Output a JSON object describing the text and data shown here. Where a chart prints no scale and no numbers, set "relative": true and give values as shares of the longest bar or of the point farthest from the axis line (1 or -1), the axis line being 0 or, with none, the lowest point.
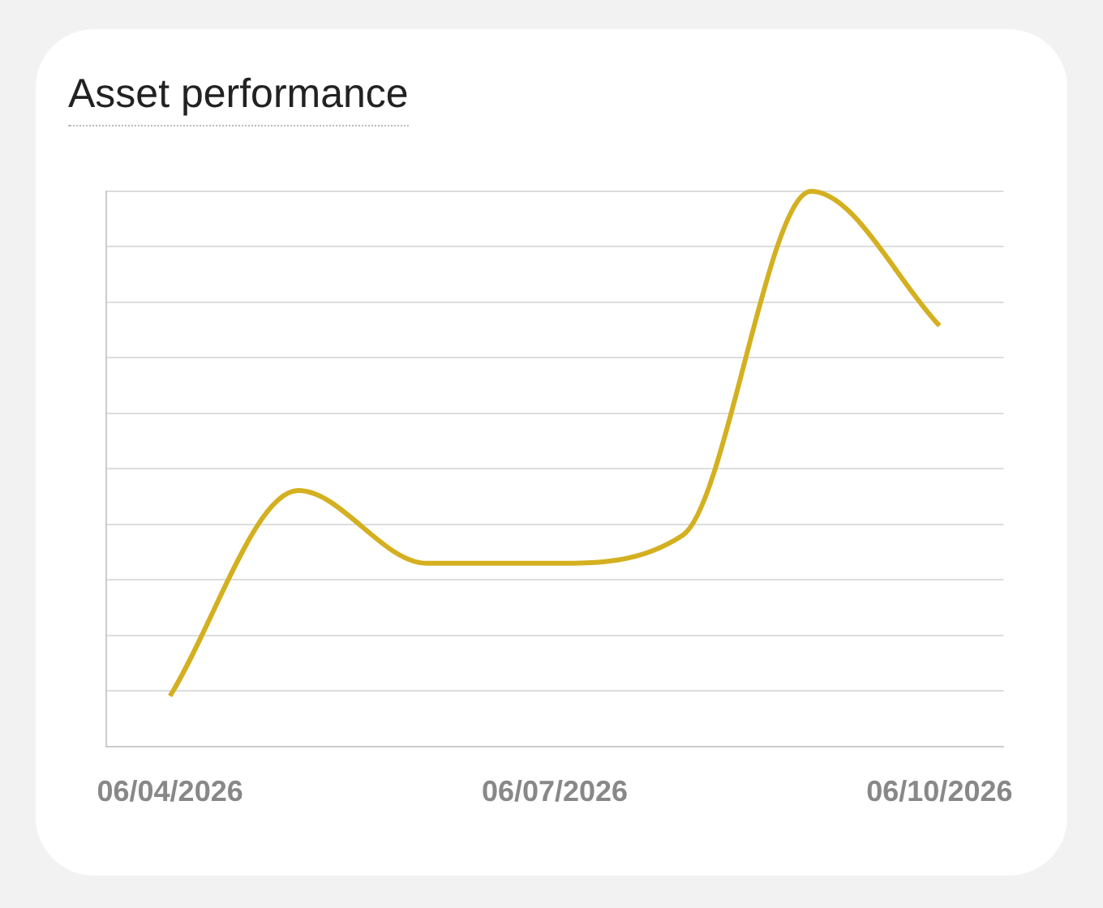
{
  "chart_data": {
    "type": "line",
    "title": "Asset performance",
    "relative": true,
    "categories": [
      "06/04/2026",
      null,
      null,
      "06/07/2026",
      null,
      null,
      "06/10/2026"
    ],
    "series": [
      {
        "color": "#d4b020",
        "values": [
          0.091,
          0.461,
          0.33,
          0.33,
          0.381,
          1,
          0.758
        ]
      }
    ],
    "grid": "y",
    "legend": false,
    "marker": "none",
    "line_style": "solid"
  }
}
